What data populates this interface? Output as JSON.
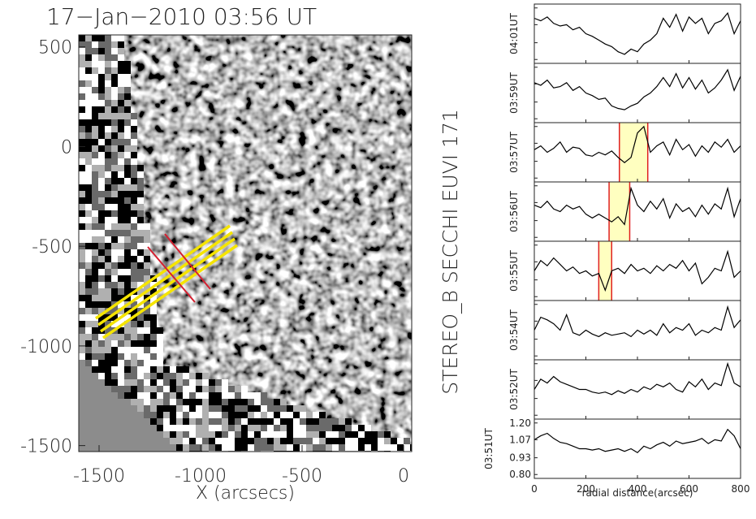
{
  "chart_data": [
    {
      "type": "image",
      "title": "17−Jan−2010 03:56 UT",
      "xlabel": "X (arcsecs)",
      "side_label": "STEREO_B SECCHI EUVI 171",
      "xlim": [
        -1600,
        40
      ],
      "ylim": [
        -1530,
        560
      ],
      "xticks": [
        -1500,
        -1000,
        -500,
        0
      ],
      "yticks": [
        500,
        0,
        -500,
        -1000,
        -1500
      ]
    },
    {
      "type": "line",
      "xlabel": "radial distance(arcsec)",
      "xlim": [
        0,
        800
      ],
      "xticks": [
        0,
        200,
        400,
        600,
        800
      ],
      "ylim": [
        0.77,
        1.23
      ],
      "yticks": [
        {
          "value": 1.2,
          "label": "1.20"
        },
        {
          "value": 1.07,
          "label": "1.07"
        },
        {
          "value": 0.93,
          "label": "0.93"
        },
        {
          "value": 0.8,
          "label": "0.80"
        }
      ],
      "highlight_color": "#ffffc0",
      "highlight_edge": "#e02020",
      "x": [
        0,
        25,
        50,
        75,
        100,
        125,
        150,
        175,
        200,
        225,
        250,
        275,
        300,
        325,
        350,
        375,
        400,
        425,
        450,
        475,
        500,
        525,
        550,
        575,
        600,
        625,
        650,
        675,
        700,
        725,
        750,
        775,
        800
      ],
      "series": [
        {
          "name": "04:01UT",
          "color": "#000000",
          "values": [
            1.12,
            1.1,
            1.13,
            1.08,
            1.06,
            1.07,
            1.03,
            1.05,
            1.0,
            0.98,
            0.95,
            0.92,
            0.9,
            0.86,
            0.84,
            0.88,
            0.86,
            0.92,
            0.95,
            1.0,
            1.12,
            1.05,
            1.15,
            1.02,
            1.13,
            1.08,
            1.12,
            1.0,
            1.08,
            1.1,
            1.16,
            1.0,
            1.1
          ]
        },
        {
          "name": "03:59UT",
          "color": "#000000",
          "values": [
            1.08,
            1.06,
            1.1,
            1.04,
            1.05,
            1.08,
            1.02,
            1.05,
            1.0,
            0.98,
            0.95,
            0.96,
            0.9,
            0.88,
            0.87,
            0.9,
            0.92,
            0.97,
            1.0,
            1.05,
            1.12,
            1.05,
            1.15,
            1.04,
            1.12,
            1.03,
            1.1,
            1.0,
            1.04,
            1.1,
            1.18,
            1.02,
            1.13
          ]
        },
        {
          "name": "03:57UT",
          "color": "#000000",
          "highlight": [
            330,
            440
          ],
          "values": [
            1.02,
            1.05,
            1.0,
            1.03,
            1.08,
            1.0,
            1.04,
            1.03,
            0.98,
            0.97,
            1.0,
            0.98,
            1.01,
            0.96,
            0.92,
            0.96,
            1.15,
            1.2,
            1.0,
            1.05,
            1.08,
            0.98,
            1.1,
            1.02,
            1.06,
            0.97,
            1.05,
            1.0,
            1.08,
            1.04,
            1.1,
            1.0,
            1.05
          ]
        },
        {
          "name": "03:56UT",
          "color": "#000000",
          "highlight": [
            290,
            370
          ],
          "values": [
            1.05,
            1.03,
            1.08,
            1.02,
            1.0,
            1.05,
            1.02,
            1.04,
            0.98,
            0.95,
            0.98,
            0.95,
            0.92,
            0.96,
            0.9,
            1.18,
            1.05,
            1.0,
            1.08,
            1.02,
            1.1,
            0.95,
            1.06,
            1.0,
            1.03,
            0.96,
            1.05,
            0.98,
            1.06,
            1.02,
            1.18,
            0.96,
            1.1
          ]
        },
        {
          "name": "03:55UT",
          "color": "#000000",
          "highlight": [
            250,
            300
          ],
          "values": [
            1.0,
            1.08,
            1.04,
            1.1,
            1.05,
            1.0,
            1.03,
            0.98,
            1.0,
            0.96,
            0.98,
            0.85,
            1.0,
            1.02,
            0.98,
            1.05,
            1.0,
            1.02,
            0.98,
            1.04,
            1.0,
            1.05,
            1.02,
            1.08,
            1.0,
            1.06,
            0.9,
            0.95,
            1.02,
            1.0,
            1.15,
            0.95,
            1.0
          ]
        },
        {
          "name": "03:54UT",
          "color": "#000000",
          "values": [
            1.0,
            1.1,
            1.08,
            1.05,
            1.0,
            1.12,
            0.98,
            0.96,
            1.0,
            0.97,
            0.95,
            0.98,
            0.96,
            0.97,
            0.98,
            0.95,
            1.0,
            0.97,
            1.0,
            0.96,
            1.05,
            0.98,
            1.02,
            1.0,
            1.05,
            0.96,
            1.0,
            0.98,
            1.02,
            1.0,
            1.18,
            1.02,
            1.08
          ]
        },
        {
          "name": "03:52UT",
          "color": "#000000",
          "values": [
            1.0,
            1.08,
            1.05,
            1.1,
            1.06,
            1.04,
            1.02,
            1.0,
            1.0,
            0.98,
            0.97,
            0.98,
            0.96,
            0.99,
            0.97,
            1.0,
            0.98,
            1.02,
            1.0,
            1.04,
            1.02,
            1.05,
            1.0,
            0.98,
            1.06,
            1.02,
            1.08,
            1.0,
            1.05,
            1.03,
            1.2,
            1.05,
            1.02
          ]
        },
        {
          "name": "03:51UT",
          "color": "#000000",
          "values": [
            1.07,
            1.1,
            1.12,
            1.08,
            1.05,
            1.04,
            1.02,
            1.0,
            1.0,
            0.99,
            1.0,
            0.98,
            0.99,
            1.0,
            0.98,
            1.0,
            0.97,
            1.02,
            1.0,
            1.03,
            1.05,
            1.02,
            1.06,
            1.04,
            1.05,
            1.06,
            1.08,
            1.04,
            1.07,
            1.06,
            1.15,
            1.1,
            1.0
          ]
        }
      ]
    }
  ]
}
